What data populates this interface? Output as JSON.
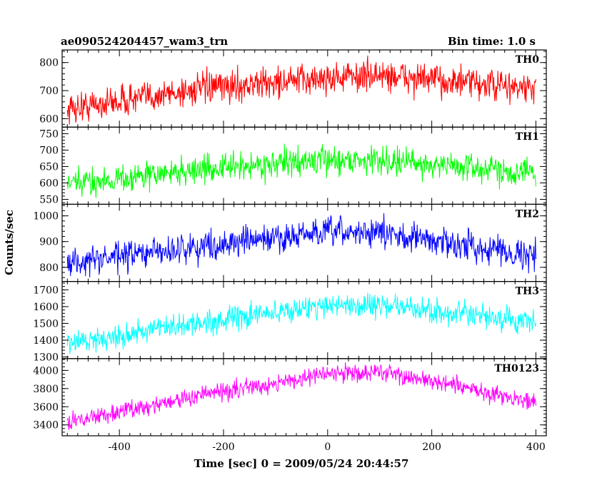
{
  "header": {
    "title": "ae090524204457_wam3_trn",
    "bin_time": "Bin time: 1.0 s"
  },
  "chart_data": {
    "type": "line",
    "xlabel": "Time [sec] 0 = 2009/05/24 20:44:57",
    "ylabel": "Counts/sec",
    "xlim": [
      -510,
      420
    ],
    "xticks": [
      -400,
      -200,
      0,
      200,
      400
    ],
    "grid": false,
    "panels": [
      {
        "name": "TH0",
        "color": "#ff0000",
        "ylim": [
          570,
          845
        ],
        "yticks": [
          600,
          700,
          800
        ],
        "x_range": [
          -500,
          400
        ],
        "trend_x": [
          -500,
          -250,
          0,
          100,
          400
        ],
        "trend_y": [
          635,
          705,
          745,
          755,
          705
        ],
        "noise": 40
      },
      {
        "name": "TH1",
        "color": "#00ff00",
        "ylim": [
          535,
          770
        ],
        "yticks": [
          550,
          600,
          650,
          700,
          750
        ],
        "x_range": [
          -500,
          400
        ],
        "trend_x": [
          -500,
          -250,
          0,
          100,
          400
        ],
        "trend_y": [
          595,
          640,
          670,
          670,
          630
        ],
        "noise": 30
      },
      {
        "name": "TH2",
        "color": "#0000ff",
        "ylim": [
          745,
          1045
        ],
        "yticks": [
          800,
          900,
          1000
        ],
        "x_range": [
          -500,
          400
        ],
        "trend_x": [
          -500,
          -250,
          0,
          100,
          400
        ],
        "trend_y": [
          815,
          880,
          935,
          935,
          845
        ],
        "noise": 40
      },
      {
        "name": "TH3",
        "color": "#00ffff",
        "ylim": [
          1290,
          1750
        ],
        "yticks": [
          1300,
          1400,
          1500,
          1600,
          1700
        ],
        "x_range": [
          -500,
          400
        ],
        "trend_x": [
          -500,
          -250,
          0,
          100,
          400
        ],
        "trend_y": [
          1380,
          1500,
          1610,
          1610,
          1500
        ],
        "noise": 50
      },
      {
        "name": "TH0123",
        "color": "#ff00ff",
        "ylim": [
          3280,
          4130
        ],
        "yticks": [
          3400,
          3600,
          3800,
          4000
        ],
        "x_range": [
          -500,
          400
        ],
        "trend_x": [
          -500,
          -250,
          0,
          100,
          400
        ],
        "trend_y": [
          3430,
          3720,
          3960,
          3990,
          3650
        ],
        "noise": 70
      }
    ]
  }
}
